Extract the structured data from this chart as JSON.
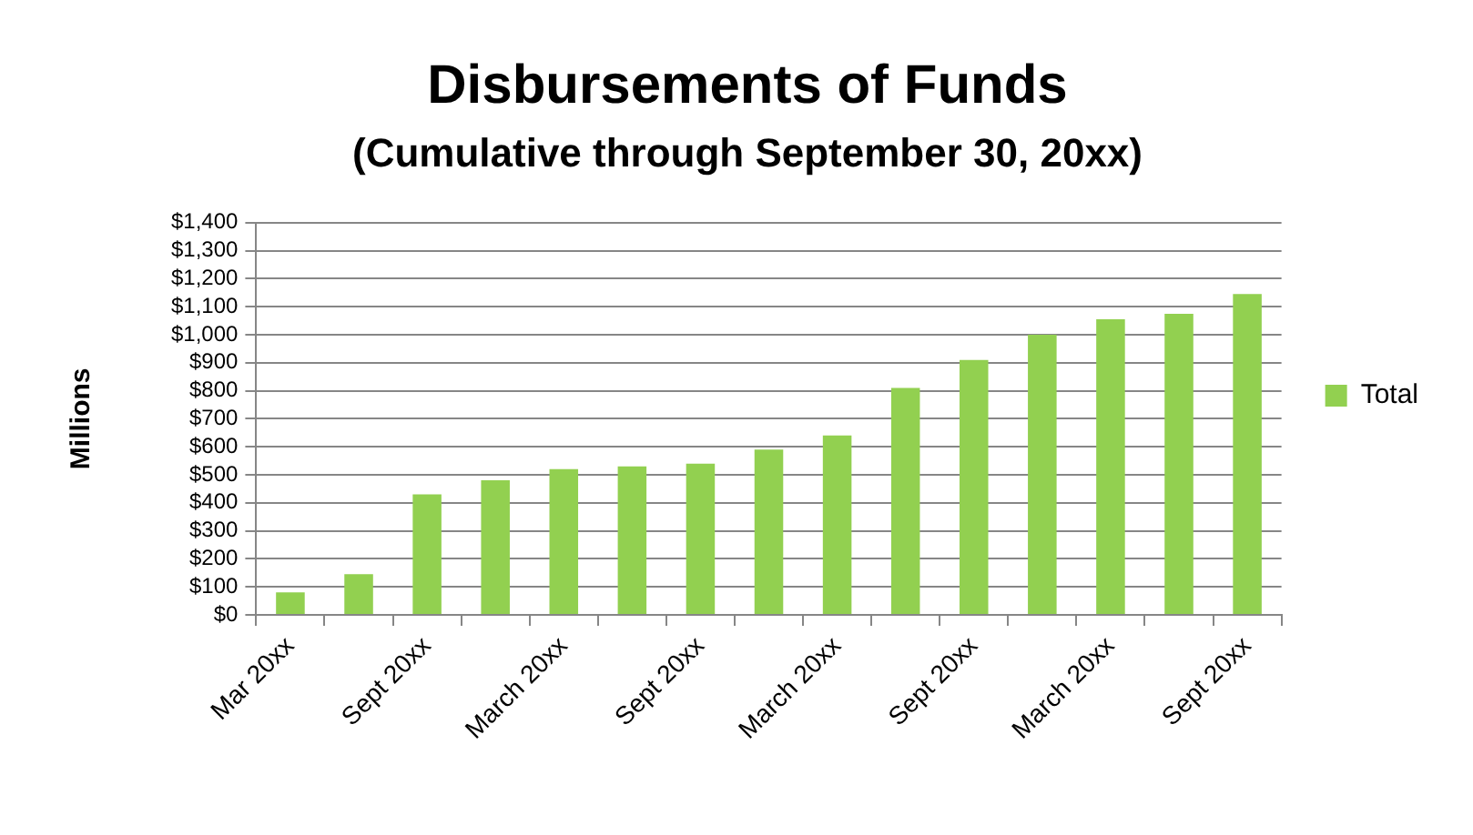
{
  "chart_data": {
    "type": "bar",
    "title": "Disbursements of Funds",
    "subtitle": "(Cumulative through September 30, 20xx)",
    "ylabel": "Millions",
    "categories": [
      "Mar 20xx",
      null,
      "Sept 20xx",
      null,
      "March 20xx",
      null,
      "Sept 20xx",
      null,
      "March 20xx",
      null,
      "Sept 20xx",
      null,
      "March 20xx",
      null,
      "Sept 20xx"
    ],
    "series": [
      {
        "name": "Total",
        "color": "#92d050",
        "values": [
          80,
          145,
          430,
          480,
          520,
          530,
          540,
          590,
          640,
          810,
          910,
          1000,
          1055,
          1075,
          1145
        ]
      }
    ],
    "ylim": [
      0,
      1400
    ],
    "yticks": [
      {
        "value": 0,
        "label": "$0"
      },
      {
        "value": 100,
        "label": "$100"
      },
      {
        "value": 200,
        "label": "$200"
      },
      {
        "value": 300,
        "label": "$300"
      },
      {
        "value": 400,
        "label": "$400"
      },
      {
        "value": 500,
        "label": "$500"
      },
      {
        "value": 600,
        "label": "$600"
      },
      {
        "value": 700,
        "label": "$700"
      },
      {
        "value": 800,
        "label": "$800"
      },
      {
        "value": 900,
        "label": "$900"
      },
      {
        "value": 1000,
        "label": "$1,000"
      },
      {
        "value": 1100,
        "label": "$1,100"
      },
      {
        "value": 1200,
        "label": "$1,200"
      },
      {
        "value": 1300,
        "label": "$1,300"
      },
      {
        "value": 1400,
        "label": "$1,400"
      }
    ],
    "grid": "y",
    "legend": "right"
  }
}
